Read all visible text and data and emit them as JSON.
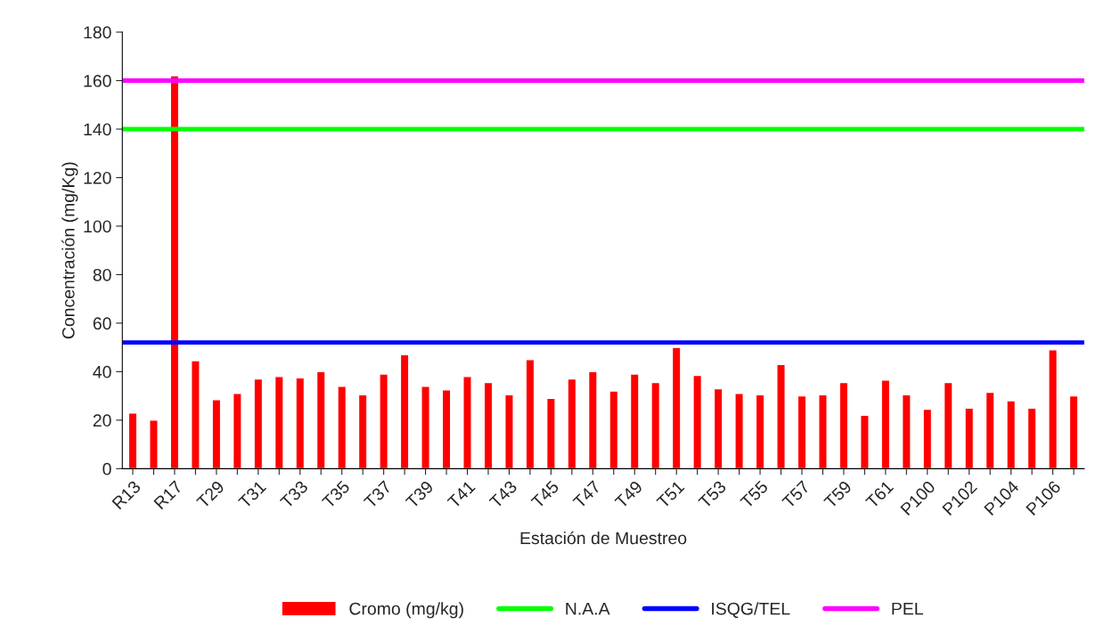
{
  "chart_data": {
    "type": "bar",
    "xlabel": "Estación de Muestreo",
    "ylabel": "Concentración (mg/Kg)",
    "categories": [
      "R13",
      null,
      "R17",
      null,
      "T29",
      null,
      "T31",
      null,
      "T33",
      null,
      "T35",
      null,
      "T37",
      null,
      "T39",
      null,
      "T41",
      null,
      "T43",
      null,
      "T45",
      null,
      "T47",
      null,
      "T49",
      null,
      "T51",
      null,
      "T53",
      null,
      "T55",
      null,
      "T57",
      null,
      "T59",
      null,
      "T61",
      null,
      "P100",
      null,
      "P102",
      null,
      "P104",
      null,
      "P106",
      null
    ],
    "series": [
      {
        "name": "Cromo (mg/kg)",
        "color": "#ff0000",
        "values": [
          23,
          20,
          162,
          44.5,
          28.5,
          31,
          37,
          38,
          37.5,
          40,
          34,
          30.5,
          39,
          47,
          34,
          32.5,
          38,
          35.5,
          30.5,
          45,
          29,
          37,
          40,
          32,
          39,
          35.5,
          50,
          38.5,
          33,
          31,
          30.5,
          43,
          30,
          30.5,
          35.5,
          22,
          36.5,
          30.5,
          24.5,
          35.5,
          25,
          31.5,
          28,
          25,
          49,
          30
        ]
      }
    ],
    "ref_lines": [
      {
        "axis": "y",
        "value": 140,
        "label": "N.A.A",
        "color": "#00ff00"
      },
      {
        "axis": "y",
        "value": 52,
        "label": "ISQG/TEL",
        "color": "#0000ff"
      },
      {
        "axis": "y",
        "value": 160,
        "label": "PEL",
        "color": "#ff00ff"
      }
    ],
    "ylim": [
      0,
      180
    ],
    "yticks": [
      0,
      20,
      40,
      60,
      80,
      100,
      120,
      140,
      160,
      180
    ],
    "grid": false,
    "legend": "bottom"
  }
}
